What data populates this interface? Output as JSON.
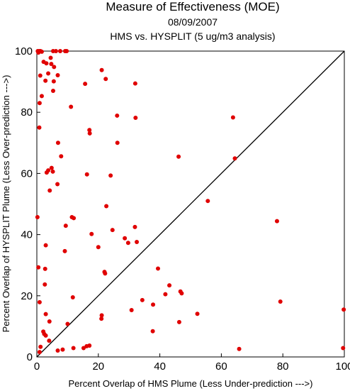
{
  "chart_data": {
    "type": "scatter",
    "title": "Measure of Effectiveness (MOE)",
    "date": "08/09/2007",
    "subtitle": "HMS vs. HYSPLIT  (5 ug/m3 analysis)",
    "xlabel": "Percent Overlap of HMS Plume (Less Under-prediction --->)",
    "ylabel": "Percent Overlap of HYSPLIT Plume (Less Over-prediction --->)",
    "xlim": [
      0,
      100
    ],
    "ylim": [
      0,
      100
    ],
    "xticks": [
      0,
      20,
      40,
      60,
      80,
      100
    ],
    "yticks": [
      0,
      20,
      40,
      60,
      80,
      100
    ],
    "x_tick_labels": [
      "0",
      "20",
      "40",
      "60",
      "80",
      "100"
    ],
    "y_tick_labels": [
      "0",
      "20",
      "40",
      "60",
      "80",
      "100"
    ],
    "grid": false,
    "reference_line": {
      "from": [
        0,
        0
      ],
      "to": [
        100,
        100
      ]
    },
    "marker_color": "#e00000",
    "points": [
      [
        0.3,
        100
      ],
      [
        0.8,
        100
      ],
      [
        1.2,
        100
      ],
      [
        1.6,
        99.8
      ],
      [
        0.5,
        99.5
      ],
      [
        5.3,
        100
      ],
      [
        6.2,
        100
      ],
      [
        7.6,
        100
      ],
      [
        9.2,
        100
      ],
      [
        9.7,
        100
      ],
      [
        2.2,
        96.5
      ],
      [
        3.1,
        96
      ],
      [
        4.5,
        97.8
      ],
      [
        4.7,
        95.8
      ],
      [
        5.6,
        94.8
      ],
      [
        6.8,
        92.1
      ],
      [
        3.7,
        92.7
      ],
      [
        1.1,
        92
      ],
      [
        2.8,
        90.3
      ],
      [
        5.5,
        90.1
      ],
      [
        0.9,
        83
      ],
      [
        1.6,
        85.3
      ],
      [
        5.3,
        87
      ],
      [
        11.1,
        81.8
      ],
      [
        15.7,
        89.3
      ],
      [
        21.1,
        93.8
      ],
      [
        22.4,
        90.9
      ],
      [
        32.0,
        89.4
      ],
      [
        26.1,
        78.9
      ],
      [
        32.1,
        78.2
      ],
      [
        0.8,
        75
      ],
      [
        17.1,
        74.2
      ],
      [
        17.2,
        73.1
      ],
      [
        6.9,
        70
      ],
      [
        26.2,
        70
      ],
      [
        7.9,
        65.6
      ],
      [
        3.2,
        60.3
      ],
      [
        3.7,
        61
      ],
      [
        4.8,
        61.8
      ],
      [
        5.2,
        60.6
      ],
      [
        16.3,
        59.7
      ],
      [
        24.0,
        59.3
      ],
      [
        6.7,
        56.5
      ],
      [
        4.2,
        54.4
      ],
      [
        63.8,
        78.3
      ],
      [
        64.4,
        64.9
      ],
      [
        46.1,
        65.5
      ],
      [
        55.6,
        51
      ],
      [
        22.6,
        49.3
      ],
      [
        78.1,
        44.4
      ],
      [
        0.2,
        45.7
      ],
      [
        11.4,
        45.7
      ],
      [
        12.0,
        45.4
      ],
      [
        9.4,
        42.9
      ],
      [
        24.6,
        41.5
      ],
      [
        17.8,
        40.2
      ],
      [
        28.6,
        38.8
      ],
      [
        29.7,
        37.3
      ],
      [
        32.5,
        37.6
      ],
      [
        31.9,
        42.5
      ],
      [
        2.9,
        36.5
      ],
      [
        9.1,
        34.6
      ],
      [
        20.0,
        35.9
      ],
      [
        22.0,
        27.8
      ],
      [
        22.2,
        27.3
      ],
      [
        0.5,
        29.3
      ],
      [
        2.7,
        28.8
      ],
      [
        39.4,
        28.9
      ],
      [
        2.6,
        23.7
      ],
      [
        43.1,
        23.4
      ],
      [
        11.7,
        19.5
      ],
      [
        34.3,
        18.6
      ],
      [
        37.8,
        17.1
      ],
      [
        41.8,
        20.5
      ],
      [
        46.7,
        21.4
      ],
      [
        47.1,
        20.8
      ],
      [
        0.9,
        17.9
      ],
      [
        2.9,
        14
      ],
      [
        21.1,
        13.6
      ],
      [
        21.0,
        12.5
      ],
      [
        30.8,
        15.3
      ],
      [
        52.2,
        14.1
      ],
      [
        79.2,
        18.1
      ],
      [
        99.8,
        15.5
      ],
      [
        4.1,
        11.6
      ],
      [
        10.0,
        10.8
      ],
      [
        46.3,
        11.4
      ],
      [
        37.7,
        8.4
      ],
      [
        2.1,
        8.3
      ],
      [
        2.4,
        7.5
      ],
      [
        2.9,
        7
      ],
      [
        4.0,
        5.3
      ],
      [
        1.2,
        3.3
      ],
      [
        0.9,
        1.6
      ],
      [
        6.8,
        2.1
      ],
      [
        8.4,
        2.4
      ],
      [
        11.9,
        2.9
      ],
      [
        15.2,
        2.9
      ],
      [
        16.2,
        3.5
      ],
      [
        17.1,
        3.7
      ],
      [
        65.8,
        2.6
      ],
      [
        99.6,
        2.9
      ]
    ]
  }
}
